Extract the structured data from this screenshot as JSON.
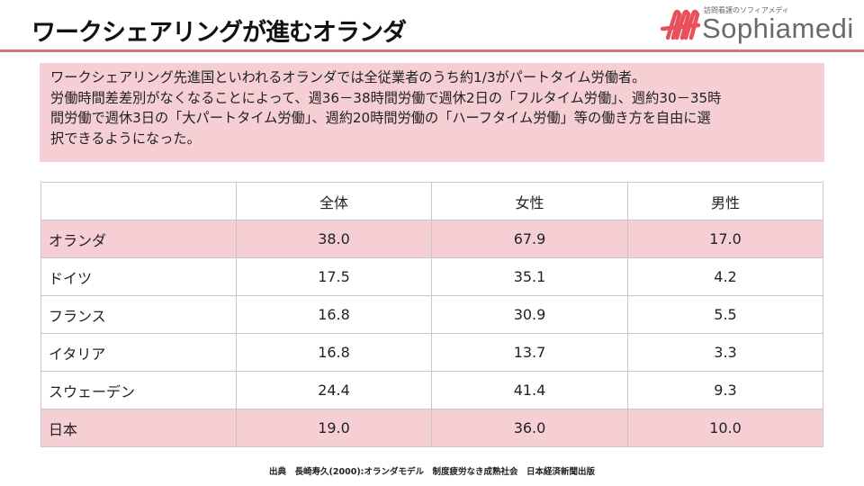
{
  "header": {
    "title": "ワークシェアリングが進むオランダ",
    "logo": {
      "tagline": "訪問看護のソフィアメディ",
      "brand": "Sophiamedi",
      "mark_color": "#e8505b"
    },
    "rule_color": "#d9707e"
  },
  "intro": {
    "lines": [
      "ワークシェアリング先進国といわれるオランダでは全従業者のうち約1/3がパートタイム労働者。",
      "労働時間差差別がなくなることによって、週36－38時間労働で週休2日の「フルタイム労働」、週約30－35時",
      "間労働で週休3日の「大パートタイム労働」、週約20時間労働の「ハーフタイム労働」等の働き方を自由に選",
      "択できるようになった。"
    ],
    "background": "#f6cfd4"
  },
  "table": {
    "headers": [
      "",
      "全体",
      "女性",
      "男性"
    ],
    "rows": [
      {
        "country": "オランダ",
        "total": "38.0",
        "female": "67.9",
        "male": "17.0",
        "highlight": true
      },
      {
        "country": "ドイツ",
        "total": "17.5",
        "female": "35.1",
        "male": "4.2",
        "highlight": false
      },
      {
        "country": "フランス",
        "total": "16.8",
        "female": "30.9",
        "male": "5.5",
        "highlight": false
      },
      {
        "country": "イタリア",
        "total": "16.8",
        "female": "13.7",
        "male": "3.3",
        "highlight": false
      },
      {
        "country": "スウェーデン",
        "total": "24.4",
        "female": "41.4",
        "male": "9.3",
        "highlight": false
      },
      {
        "country": "日本",
        "total": "19.0",
        "female": "36.0",
        "male": "10.0",
        "highlight": true
      }
    ]
  },
  "source": "出典　長崎寿久(2000):オランダモデル　制度疲労なき成熟社会　日本経済新聞出版"
}
